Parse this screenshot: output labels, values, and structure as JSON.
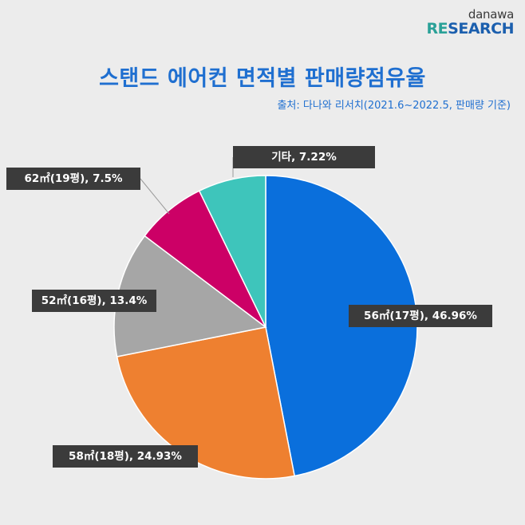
{
  "logo": {
    "top": "danawa",
    "re": "RE",
    "rest": "SEARCH"
  },
  "title": "스탠드 에어컨 면적별 판매량점유율",
  "source": "출처: 다나와 리서치(2021.6~2022.5, 판매량 기준)",
  "chart_data": {
    "type": "pie",
    "title": "스탠드 에어컨 면적별 판매량점유율",
    "slices": [
      {
        "name": "56㎡(17평)",
        "value": 46.96,
        "label": "56㎡(17평), 46.96%",
        "color": "#0a6fdc"
      },
      {
        "name": "58㎡(18평)",
        "value": 24.93,
        "label": "58㎡(18평), 24.93%",
        "color": "#ee8030"
      },
      {
        "name": "52㎡(16평)",
        "value": 13.4,
        "label": "52㎡(16평), 13.4%",
        "color": "#a6a6a6"
      },
      {
        "name": "62㎡(19평)",
        "value": 7.5,
        "label": "62㎡(19평), 7.5%",
        "color": "#cc0066"
      },
      {
        "name": "기타",
        "value": 7.22,
        "label": "기타, 7.22%",
        "color": "#3ec5bb"
      }
    ]
  }
}
